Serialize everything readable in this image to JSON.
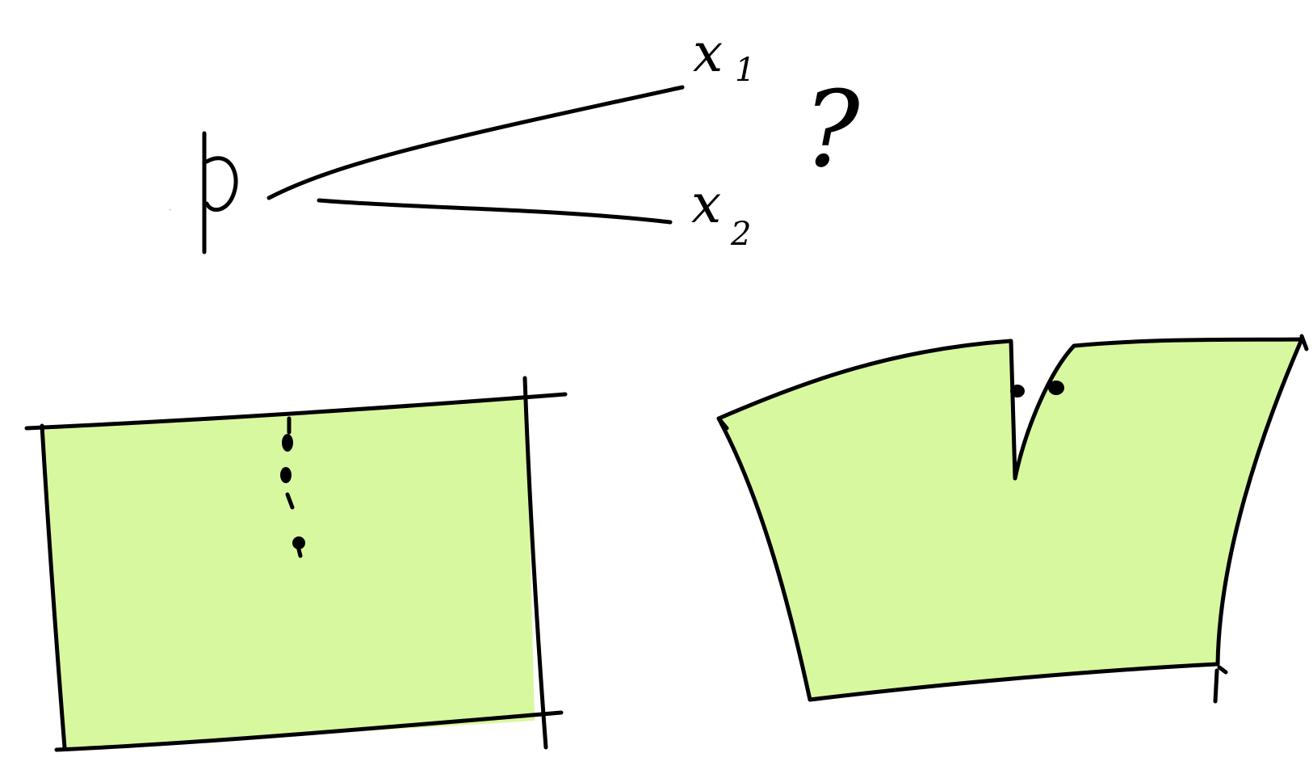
{
  "diagram": {
    "top_sketch": {
      "origin_label": "p",
      "branch_labels": [
        {
          "name": "x",
          "subscript": "1"
        },
        {
          "name": "x",
          "subscript": "2"
        }
      ],
      "query_mark": "?"
    },
    "panels": [
      {
        "shape": "rectangle-patch",
        "marks": "dotted-cut"
      },
      {
        "shape": "slit-patch",
        "marks": "two-dots-on-slit"
      }
    ],
    "colors": {
      "ink": "#000000",
      "fill": "#d8f8a0",
      "background": "#ffffff"
    }
  }
}
